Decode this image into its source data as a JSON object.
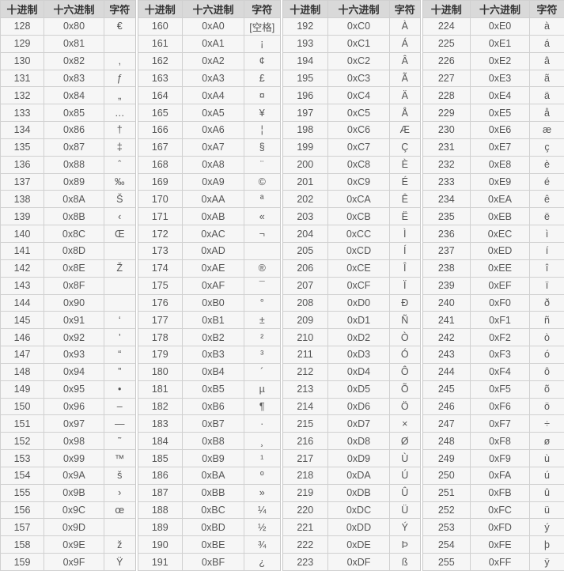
{
  "headers": [
    "十进制",
    "十六进制",
    "字符"
  ],
  "groups": [
    {
      "rows": [
        [
          "128",
          "0x80",
          "€"
        ],
        [
          "129",
          "0x81",
          ""
        ],
        [
          "130",
          "0x82",
          "‚"
        ],
        [
          "131",
          "0x83",
          "ƒ"
        ],
        [
          "132",
          "0x84",
          "„"
        ],
        [
          "133",
          "0x85",
          "…"
        ],
        [
          "134",
          "0x86",
          "†"
        ],
        [
          "135",
          "0x87",
          "‡"
        ],
        [
          "136",
          "0x88",
          "ˆ"
        ],
        [
          "137",
          "0x89",
          "‰"
        ],
        [
          "138",
          "0x8A",
          "Š"
        ],
        [
          "139",
          "0x8B",
          "‹"
        ],
        [
          "140",
          "0x8C",
          "Œ"
        ],
        [
          "141",
          "0x8D",
          ""
        ],
        [
          "142",
          "0x8E",
          "Ž"
        ],
        [
          "143",
          "0x8F",
          ""
        ],
        [
          "144",
          "0x90",
          ""
        ],
        [
          "145",
          "0x91",
          "‘"
        ],
        [
          "146",
          "0x92",
          "’"
        ],
        [
          "147",
          "0x93",
          "“"
        ],
        [
          "148",
          "0x94",
          "”"
        ],
        [
          "149",
          "0x95",
          "•"
        ],
        [
          "150",
          "0x96",
          "–"
        ],
        [
          "151",
          "0x97",
          "—"
        ],
        [
          "152",
          "0x98",
          "˜"
        ],
        [
          "153",
          "0x99",
          "™"
        ],
        [
          "154",
          "0x9A",
          "š"
        ],
        [
          "155",
          "0x9B",
          "›"
        ],
        [
          "156",
          "0x9C",
          "œ"
        ],
        [
          "157",
          "0x9D",
          ""
        ],
        [
          "158",
          "0x9E",
          "ž"
        ],
        [
          "159",
          "0x9F",
          "Ÿ"
        ]
      ]
    },
    {
      "rows": [
        [
          "160",
          "0xA0",
          "[空格]"
        ],
        [
          "161",
          "0xA1",
          "¡"
        ],
        [
          "162",
          "0xA2",
          "¢"
        ],
        [
          "163",
          "0xA3",
          "£"
        ],
        [
          "164",
          "0xA4",
          "¤"
        ],
        [
          "165",
          "0xA5",
          "¥"
        ],
        [
          "166",
          "0xA6",
          "¦"
        ],
        [
          "167",
          "0xA7",
          "§"
        ],
        [
          "168",
          "0xA8",
          "¨"
        ],
        [
          "169",
          "0xA9",
          "©"
        ],
        [
          "170",
          "0xAA",
          "ª"
        ],
        [
          "171",
          "0xAB",
          "«"
        ],
        [
          "172",
          "0xAC",
          "¬"
        ],
        [
          "173",
          "0xAD",
          ""
        ],
        [
          "174",
          "0xAE",
          "®"
        ],
        [
          "175",
          "0xAF",
          "¯"
        ],
        [
          "176",
          "0xB0",
          "°"
        ],
        [
          "177",
          "0xB1",
          "±"
        ],
        [
          "178",
          "0xB2",
          "²"
        ],
        [
          "179",
          "0xB3",
          "³"
        ],
        [
          "180",
          "0xB4",
          "´"
        ],
        [
          "181",
          "0xB5",
          "µ"
        ],
        [
          "182",
          "0xB6",
          "¶"
        ],
        [
          "183",
          "0xB7",
          "·"
        ],
        [
          "184",
          "0xB8",
          "¸"
        ],
        [
          "185",
          "0xB9",
          "¹"
        ],
        [
          "186",
          "0xBA",
          "º"
        ],
        [
          "187",
          "0xBB",
          "»"
        ],
        [
          "188",
          "0xBC",
          "¼"
        ],
        [
          "189",
          "0xBD",
          "½"
        ],
        [
          "190",
          "0xBE",
          "¾"
        ],
        [
          "191",
          "0xBF",
          "¿"
        ]
      ]
    },
    {
      "rows": [
        [
          "192",
          "0xC0",
          "À"
        ],
        [
          "193",
          "0xC1",
          "Á"
        ],
        [
          "194",
          "0xC2",
          "Â"
        ],
        [
          "195",
          "0xC3",
          "Ã"
        ],
        [
          "196",
          "0xC4",
          "Ä"
        ],
        [
          "197",
          "0xC5",
          "Å"
        ],
        [
          "198",
          "0xC6",
          "Æ"
        ],
        [
          "199",
          "0xC7",
          "Ç"
        ],
        [
          "200",
          "0xC8",
          "È"
        ],
        [
          "201",
          "0xC9",
          "É"
        ],
        [
          "202",
          "0xCA",
          "Ê"
        ],
        [
          "203",
          "0xCB",
          "Ë"
        ],
        [
          "204",
          "0xCC",
          "Ì"
        ],
        [
          "205",
          "0xCD",
          "Í"
        ],
        [
          "206",
          "0xCE",
          "Î"
        ],
        [
          "207",
          "0xCF",
          "Ï"
        ],
        [
          "208",
          "0xD0",
          "Ð"
        ],
        [
          "209",
          "0xD1",
          "Ñ"
        ],
        [
          "210",
          "0xD2",
          "Ò"
        ],
        [
          "211",
          "0xD3",
          "Ó"
        ],
        [
          "212",
          "0xD4",
          "Ô"
        ],
        [
          "213",
          "0xD5",
          "Õ"
        ],
        [
          "214",
          "0xD6",
          "Ö"
        ],
        [
          "215",
          "0xD7",
          "×"
        ],
        [
          "216",
          "0xD8",
          "Ø"
        ],
        [
          "217",
          "0xD9",
          "Ù"
        ],
        [
          "218",
          "0xDA",
          "Ú"
        ],
        [
          "219",
          "0xDB",
          "Û"
        ],
        [
          "220",
          "0xDC",
          "Ü"
        ],
        [
          "221",
          "0xDD",
          "Ý"
        ],
        [
          "222",
          "0xDE",
          "Þ"
        ],
        [
          "223",
          "0xDF",
          "ß"
        ]
      ]
    },
    {
      "rows": [
        [
          "224",
          "0xE0",
          "à"
        ],
        [
          "225",
          "0xE1",
          "á"
        ],
        [
          "226",
          "0xE2",
          "â"
        ],
        [
          "227",
          "0xE3",
          "ã"
        ],
        [
          "228",
          "0xE4",
          "ä"
        ],
        [
          "229",
          "0xE5",
          "å"
        ],
        [
          "230",
          "0xE6",
          "æ"
        ],
        [
          "231",
          "0xE7",
          "ç"
        ],
        [
          "232",
          "0xE8",
          "è"
        ],
        [
          "233",
          "0xE9",
          "é"
        ],
        [
          "234",
          "0xEA",
          "ê"
        ],
        [
          "235",
          "0xEB",
          "ë"
        ],
        [
          "236",
          "0xEC",
          "ì"
        ],
        [
          "237",
          "0xED",
          "í"
        ],
        [
          "238",
          "0xEE",
          "î"
        ],
        [
          "239",
          "0xEF",
          "ï"
        ],
        [
          "240",
          "0xF0",
          "ð"
        ],
        [
          "241",
          "0xF1",
          "ñ"
        ],
        [
          "242",
          "0xF2",
          "ò"
        ],
        [
          "243",
          "0xF3",
          "ó"
        ],
        [
          "244",
          "0xF4",
          "ô"
        ],
        [
          "245",
          "0xF5",
          "õ"
        ],
        [
          "246",
          "0xF6",
          "ö"
        ],
        [
          "247",
          "0xF7",
          "÷"
        ],
        [
          "248",
          "0xF8",
          "ø"
        ],
        [
          "249",
          "0xF9",
          "ù"
        ],
        [
          "250",
          "0xFA",
          "ú"
        ],
        [
          "251",
          "0xFB",
          "û"
        ],
        [
          "252",
          "0xFC",
          "ü"
        ],
        [
          "253",
          "0xFD",
          "ý"
        ],
        [
          "254",
          "0xFE",
          "þ"
        ],
        [
          "255",
          "0xFF",
          "ÿ"
        ]
      ]
    }
  ]
}
